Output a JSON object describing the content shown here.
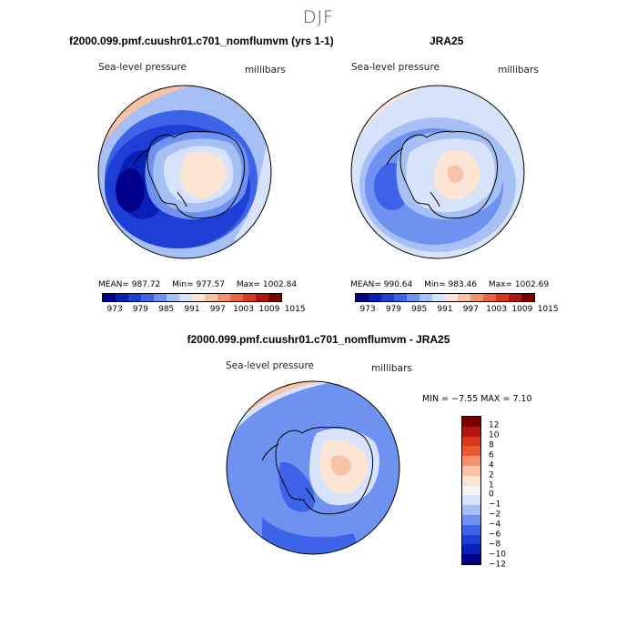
{
  "title": "DJF",
  "panels": [
    {
      "title": "f2000.099.pmf.cuushr01.c701_nomflumvm (yrs 1-1)",
      "variable": "Sea-level pressure",
      "units": "millibars",
      "stats": {
        "mean": "MEAN= 987.72",
        "min": "Min= 977.57",
        "max": "Max= 1002.84"
      },
      "colorbar_labels": [
        "973",
        "979",
        "985",
        "991",
        "997",
        "1003",
        "1009",
        "1015"
      ]
    },
    {
      "title": "JRA25",
      "variable": "Sea-level pressure",
      "units": "millibars",
      "stats": {
        "mean": "MEAN= 990.64",
        "min": "Min= 983.46",
        "max": "Max= 1002.69"
      },
      "colorbar_labels": [
        "973",
        "979",
        "985",
        "991",
        "997",
        "1003",
        "1009",
        "1015"
      ]
    }
  ],
  "diff_panel": {
    "title": "f2000.099.pmf.cuushr01.c701_nomflumvm - JRA25",
    "variable": "Sea-level pressure",
    "units": "millibars",
    "stats_text": "MIN =  −7.55 MAX =    7.10",
    "colorbar_labels": [
      "12",
      "10",
      "8",
      "6",
      "4",
      "2",
      "1",
      "0",
      "−1",
      "−2",
      "−4",
      "−6",
      "−8",
      "−10",
      "−12"
    ]
  },
  "colors": {
    "abs_scale": [
      "#00008b",
      "#0a1fb8",
      "#1e3fd6",
      "#3c63e8",
      "#6f92f0",
      "#a6c0f5",
      "#d6e3fa",
      "#fde5d6",
      "#f9c2a6",
      "#f3916e",
      "#ea6440",
      "#d8361d",
      "#b21510",
      "#7a0000"
    ],
    "diff_scale": [
      "#7a0000",
      "#b21510",
      "#d8361d",
      "#ea5a32",
      "#f3916e",
      "#f9c2a6",
      "#fde5d6",
      "#f4f4f4",
      "#d6e3fa",
      "#a6c0f5",
      "#6f92f0",
      "#3c63e8",
      "#1e3fd6",
      "#0a1fb8",
      "#00008b"
    ],
    "land_fill": "#fde2d2",
    "coastline": "#000000"
  }
}
